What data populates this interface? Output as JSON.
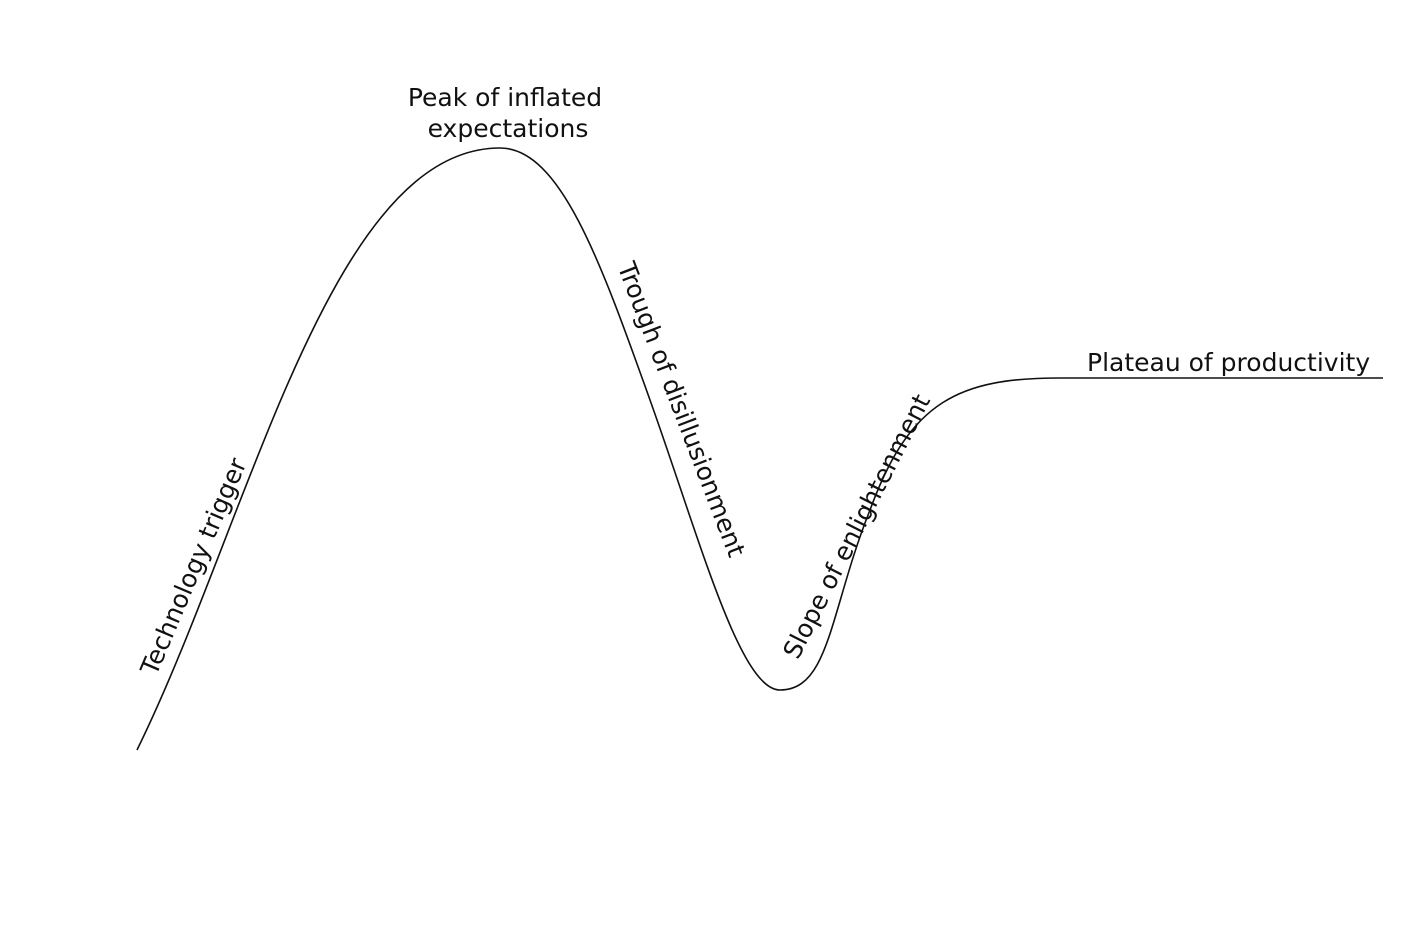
{
  "labels": {
    "technology_trigger": "Technology trigger",
    "peak": [
      "Peak of inflated",
      "expectations"
    ],
    "trough": "Trough of disillusionment",
    "slope": "Slope of enlightenment",
    "plateau": "Plateau of productivity"
  }
}
